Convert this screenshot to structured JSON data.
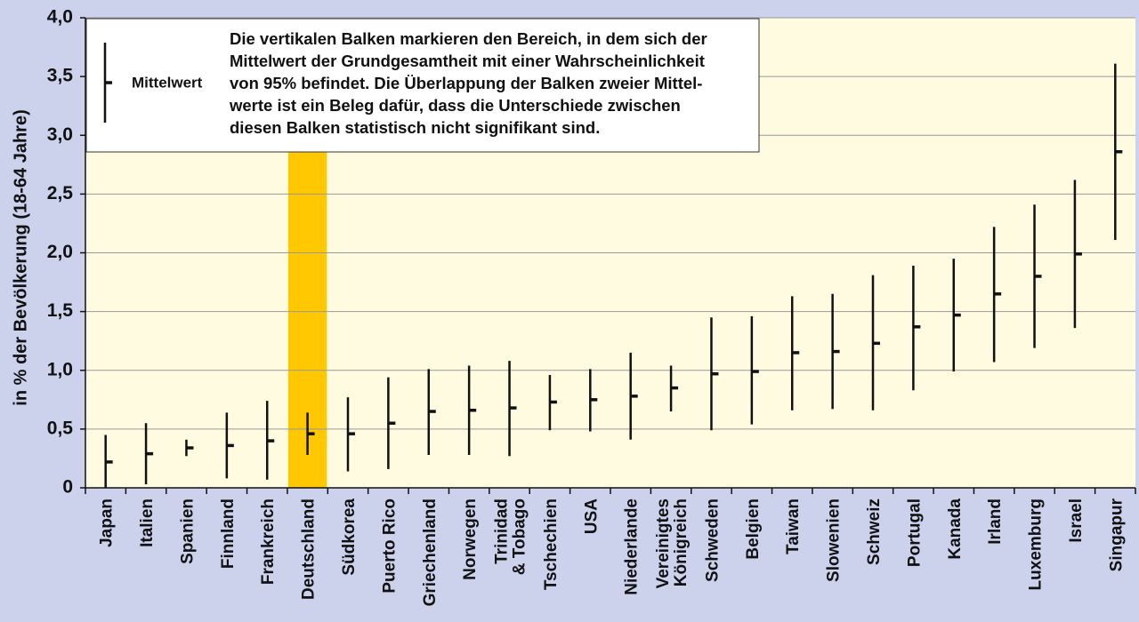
{
  "chart_data": {
    "type": "errorbar",
    "y_label": "in % der Bevölkerung (18-64 Jahre)",
    "categories": [
      "Japan",
      "Italien",
      "Spanien",
      "Finnland",
      "Frankreich",
      "Deutschland",
      "Südkorea",
      "Puerto Rico",
      "Griechenland",
      "Norwegen",
      "Trinidad\n& Tobago",
      "Tschechien",
      "USA",
      "Niederlande",
      "Vereinigtes\nKönigreich",
      "Schweden",
      "Belgien",
      "Taiwan",
      "Slowenien",
      "Schweiz",
      "Portugal",
      "Kanada",
      "Irland",
      "Luxemburg",
      "Israel",
      "Singapur"
    ],
    "series": [
      {
        "name": "Mittelwert",
        "color": "#111111",
        "values": [
          0.22,
          0.29,
          0.34,
          0.36,
          0.4,
          0.46,
          0.46,
          0.55,
          0.65,
          0.66,
          0.68,
          0.73,
          0.75,
          0.78,
          0.85,
          0.97,
          0.99,
          1.15,
          1.16,
          1.23,
          1.37,
          1.47,
          1.65,
          1.8,
          1.99,
          2.86
        ],
        "low": [
          0.0,
          0.03,
          0.27,
          0.08,
          0.07,
          0.28,
          0.14,
          0.16,
          0.28,
          0.28,
          0.27,
          0.49,
          0.48,
          0.41,
          0.65,
          0.49,
          0.54,
          0.66,
          0.67,
          0.66,
          0.83,
          0.99,
          1.07,
          1.19,
          1.36,
          2.11
        ],
        "high": [
          0.45,
          0.55,
          0.41,
          0.64,
          0.74,
          0.64,
          0.77,
          0.94,
          1.01,
          1.04,
          1.08,
          0.96,
          1.01,
          1.15,
          1.04,
          1.45,
          1.46,
          1.63,
          1.65,
          1.81,
          1.89,
          1.95,
          2.22,
          2.41,
          2.62,
          3.61
        ]
      }
    ],
    "ylim": [
      0,
      4
    ],
    "yticks": [
      0,
      {
        "value": 0.5,
        "label": "0,5"
      },
      {
        "value": 1,
        "label": "1,0"
      },
      {
        "value": 1.5,
        "label": "1,5"
      },
      {
        "value": 2,
        "label": "2,0"
      },
      {
        "value": 2.5,
        "label": "2,5"
      },
      {
        "value": 3,
        "label": "3,0"
      },
      {
        "value": 3.5,
        "label": "3,5"
      },
      {
        "value": 4,
        "label": "4,0"
      }
    ],
    "grid": true,
    "highlight": {
      "category_index": 5,
      "color": "#ffc800",
      "label_color": "#e30613"
    },
    "annotation": [
      "Die vertikalen Balken markieren den Bereich, in dem sich der",
      "Mittelwert der Grundgesamtheit mit einer Wahrscheinlichkeit",
      "von 95% befindet. Die Überlappung der Balken zweier Mittel-",
      "werte ist ein Beleg dafür, dass die Unterschiede zwischen",
      "diesen Balken statistisch nicht signifikant sind."
    ]
  }
}
